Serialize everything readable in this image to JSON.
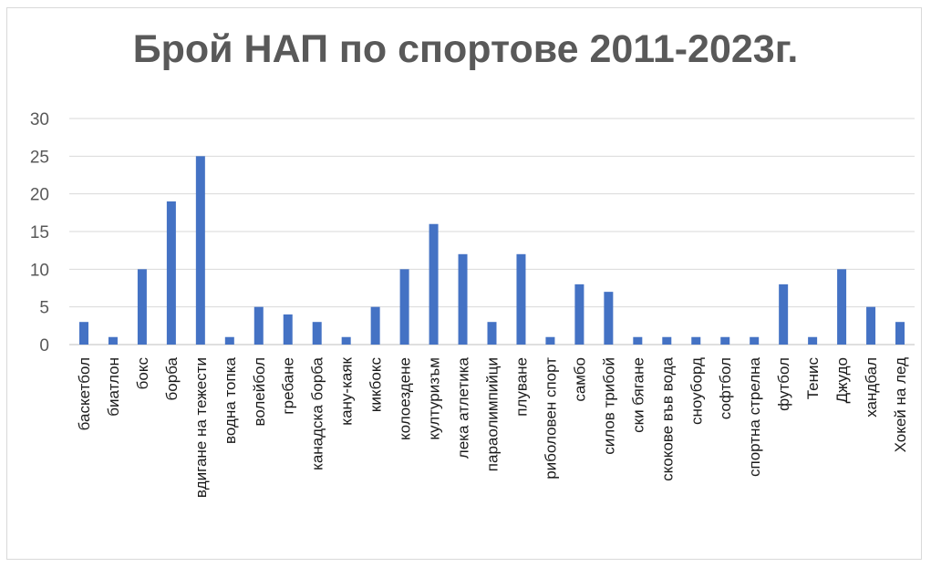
{
  "chart_data": {
    "type": "bar",
    "title": "Брой НАП по спортове 2011-2023г.",
    "xlabel": "",
    "ylabel": "",
    "ylim": [
      0,
      30
    ],
    "yticks": [
      "0",
      "5",
      "10",
      "15",
      "20",
      "25",
      "30"
    ],
    "grid": true,
    "legend": "none",
    "bar_color": "#4472c4",
    "grid_color": "#d9d9d9",
    "categories": [
      "баскетбол",
      "биатлон",
      "бокс",
      "борба",
      "вдигане на тежести",
      "водна топка",
      "волейбол",
      "гребане",
      "канадска борба",
      "кану-каяк",
      "кикбокс",
      "колоездене",
      "културизъм",
      "лека атлетика",
      "параолимпийци",
      "плуване",
      "риболовен спорт",
      "самбо",
      "силов трибой",
      "ски бягане",
      "скокове във вода",
      "сноуборд",
      "софтбол",
      "спортна стрелна",
      "футбол",
      "Тенис",
      "Джудо",
      "хандбал",
      "Хокей на лед"
    ],
    "values": [
      3,
      1,
      10,
      19,
      25,
      1,
      5,
      4,
      3,
      1,
      5,
      10,
      16,
      12,
      3,
      12,
      1,
      8,
      7,
      1,
      1,
      1,
      1,
      1,
      8,
      1,
      10,
      5,
      3
    ]
  }
}
